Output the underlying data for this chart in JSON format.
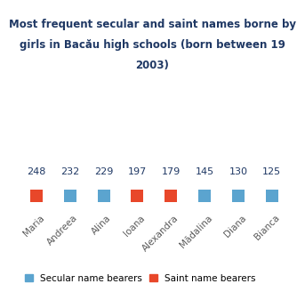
{
  "title": "Most frequent secular and saint names borne by\ngirls in Bacău high schools (born between 19\n2003)",
  "names": [
    "Maria",
    "Andreea",
    "Alina",
    "Ioana",
    "Alexandra",
    "Mădalina",
    "Diana",
    "Bianca"
  ],
  "values": [
    248,
    232,
    229,
    197,
    179,
    145,
    130,
    125
  ],
  "types": [
    "saint",
    "secular",
    "secular",
    "saint",
    "saint",
    "secular",
    "secular",
    "secular"
  ],
  "saint_color": "#E8472A",
  "secular_color": "#5BA4CF",
  "title_color": "#1F3864",
  "label_color": "#595959",
  "bg_color": "#FFFFFF",
  "legend_secular": "Secular name bearers",
  "legend_saint": "Saint name bearers",
  "title_fontsize": 8.5,
  "value_fontsize": 8,
  "label_fontsize": 7.5,
  "legend_fontsize": 7.5,
  "marker_size": 10
}
